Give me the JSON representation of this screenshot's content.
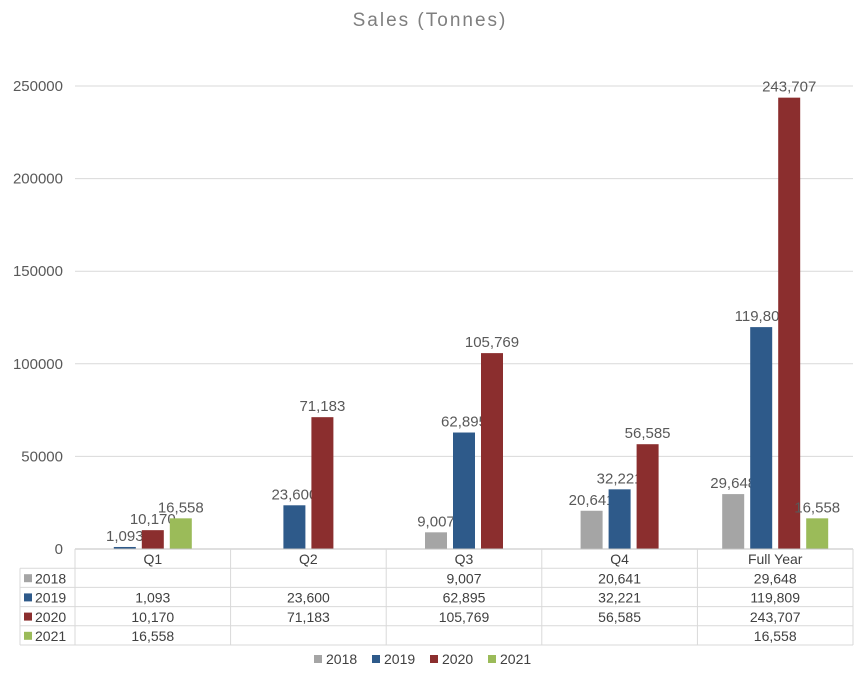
{
  "chart_data": {
    "type": "bar",
    "title": "Sales (Tonnes)",
    "categories": [
      "Q1",
      "Q2",
      "Q3",
      "Q4",
      "Full Year"
    ],
    "series": [
      {
        "name": "2018",
        "color": "#a5a5a5",
        "values": [
          null,
          null,
          9007,
          20641,
          29648
        ],
        "labels": [
          "",
          "",
          "9,007",
          "20,641",
          "29,648"
        ]
      },
      {
        "name": "2019",
        "color": "#2e5a8a",
        "values": [
          1093,
          23600,
          62895,
          32221,
          119809
        ],
        "labels": [
          "1,093",
          "23,600",
          "62,895",
          "32,221",
          "119,809"
        ]
      },
      {
        "name": "2020",
        "color": "#8b2e2e",
        "values": [
          10170,
          71183,
          105769,
          56585,
          243707
        ],
        "labels": [
          "10,170",
          "71,183",
          "105,769",
          "56,585",
          "243,707"
        ]
      },
      {
        "name": "2021",
        "color": "#9bbb59",
        "values": [
          16558,
          null,
          null,
          null,
          16558
        ],
        "labels": [
          "16,558",
          "",
          "",
          "",
          "16,558"
        ]
      }
    ],
    "yticks": [
      "0",
      "50000",
      "100000",
      "150000",
      "200000",
      "250000"
    ],
    "ylim": [
      0,
      250000
    ],
    "grid": true,
    "legend_position": "bottom",
    "data_table": true
  }
}
